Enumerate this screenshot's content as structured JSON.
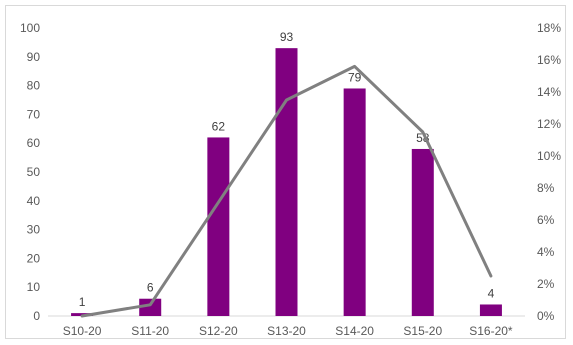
{
  "chart_data": {
    "type": "bar",
    "categories": [
      "S10-20",
      "S11-20",
      "S12-20",
      "S13-20",
      "S14-20",
      "S15-20",
      "S16-20*"
    ],
    "series": [
      {
        "type": "bar",
        "axis": "left",
        "values": [
          1,
          6,
          62,
          93,
          79,
          58,
          4
        ],
        "color": "#800080",
        "data_labels": [
          "1",
          "6",
          "62",
          "93",
          "79",
          "58",
          "4"
        ]
      },
      {
        "type": "line",
        "axis": "right",
        "values": [
          0.0,
          0.7,
          7.1,
          13.5,
          15.6,
          11.5,
          2.5
        ],
        "color": "#808080"
      }
    ],
    "y_left": {
      "min": 0,
      "max": 100,
      "ticks": [
        "0",
        "10",
        "20",
        "30",
        "40",
        "50",
        "60",
        "70",
        "80",
        "90",
        "100"
      ]
    },
    "y_right": {
      "min": 0,
      "max": 18,
      "ticks": [
        "0%",
        "2%",
        "4%",
        "6%",
        "8%",
        "10%",
        "12%",
        "14%",
        "16%",
        "18%"
      ]
    },
    "grid": false,
    "legend": "none"
  }
}
